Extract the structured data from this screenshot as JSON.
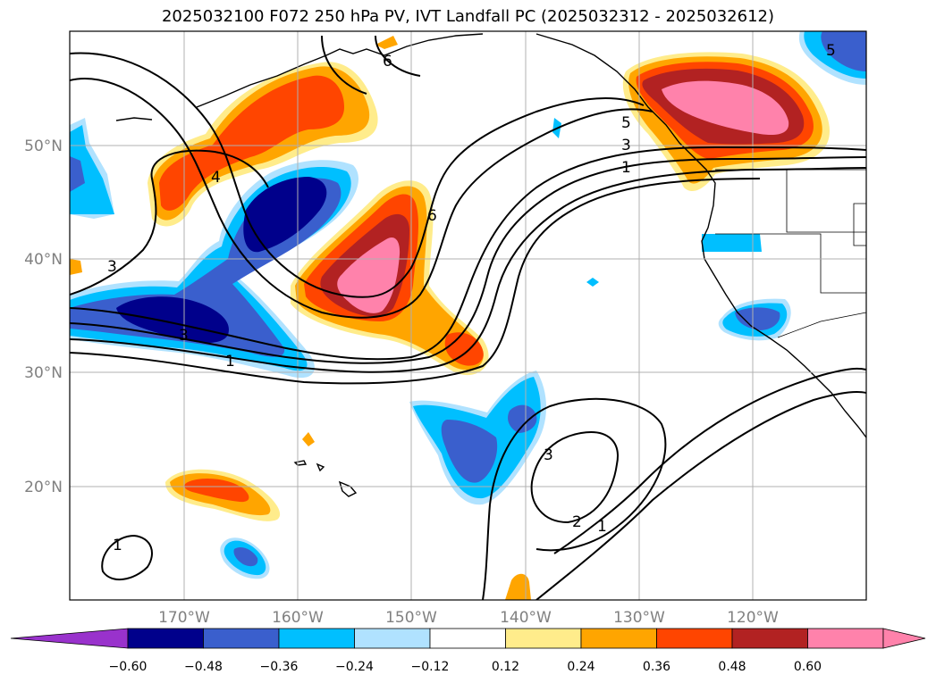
{
  "title": "2025032100 F072 250 hPa PV, IVT Landfall PC (2025032312 - 2025032612)",
  "map": {
    "lon_ticks": [
      "170°W",
      "160°W",
      "150°W",
      "140°W",
      "130°W",
      "120°W"
    ],
    "lat_ticks": [
      "50°N",
      "40°N",
      "30°N",
      "20°N"
    ],
    "grid": true
  },
  "contour_labels": [
    "3",
    "3",
    "4",
    "1",
    "6",
    "5",
    "3",
    "1",
    "3",
    "2",
    "1",
    "1",
    "6",
    "5"
  ],
  "colorbar": {
    "ticks": [
      "−0.60",
      "−0.48",
      "−0.36",
      "−0.24",
      "−0.12",
      "0.12",
      "0.24",
      "0.36",
      "0.48",
      "0.60"
    ],
    "colors": [
      "#9932cc",
      "#00008b",
      "#3a5fcd",
      "#00bfff",
      "#b0e2ff",
      "#ffffff",
      "#ffec8b",
      "#ffa500",
      "#ff4500",
      "#b22222",
      "#ff82ab",
      "#ff82ab"
    ],
    "extend": "both"
  }
}
